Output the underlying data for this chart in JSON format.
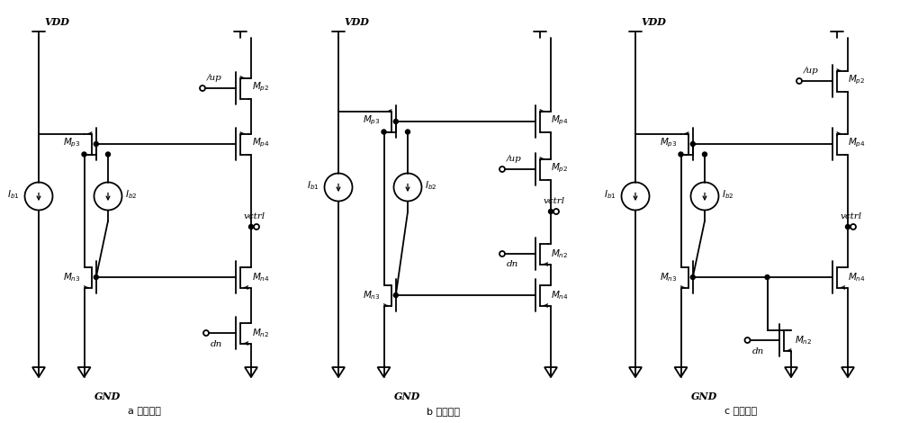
{
  "fig_w": 10.0,
  "fig_h": 4.7,
  "dpi": 100,
  "lw": 1.3,
  "lc": "#000000",
  "fs": 7.5,
  "subtitle_a": "a 源极开关",
  "subtitle_b": "b 漏极开关",
  "subtitle_c": "c 栎极开关"
}
